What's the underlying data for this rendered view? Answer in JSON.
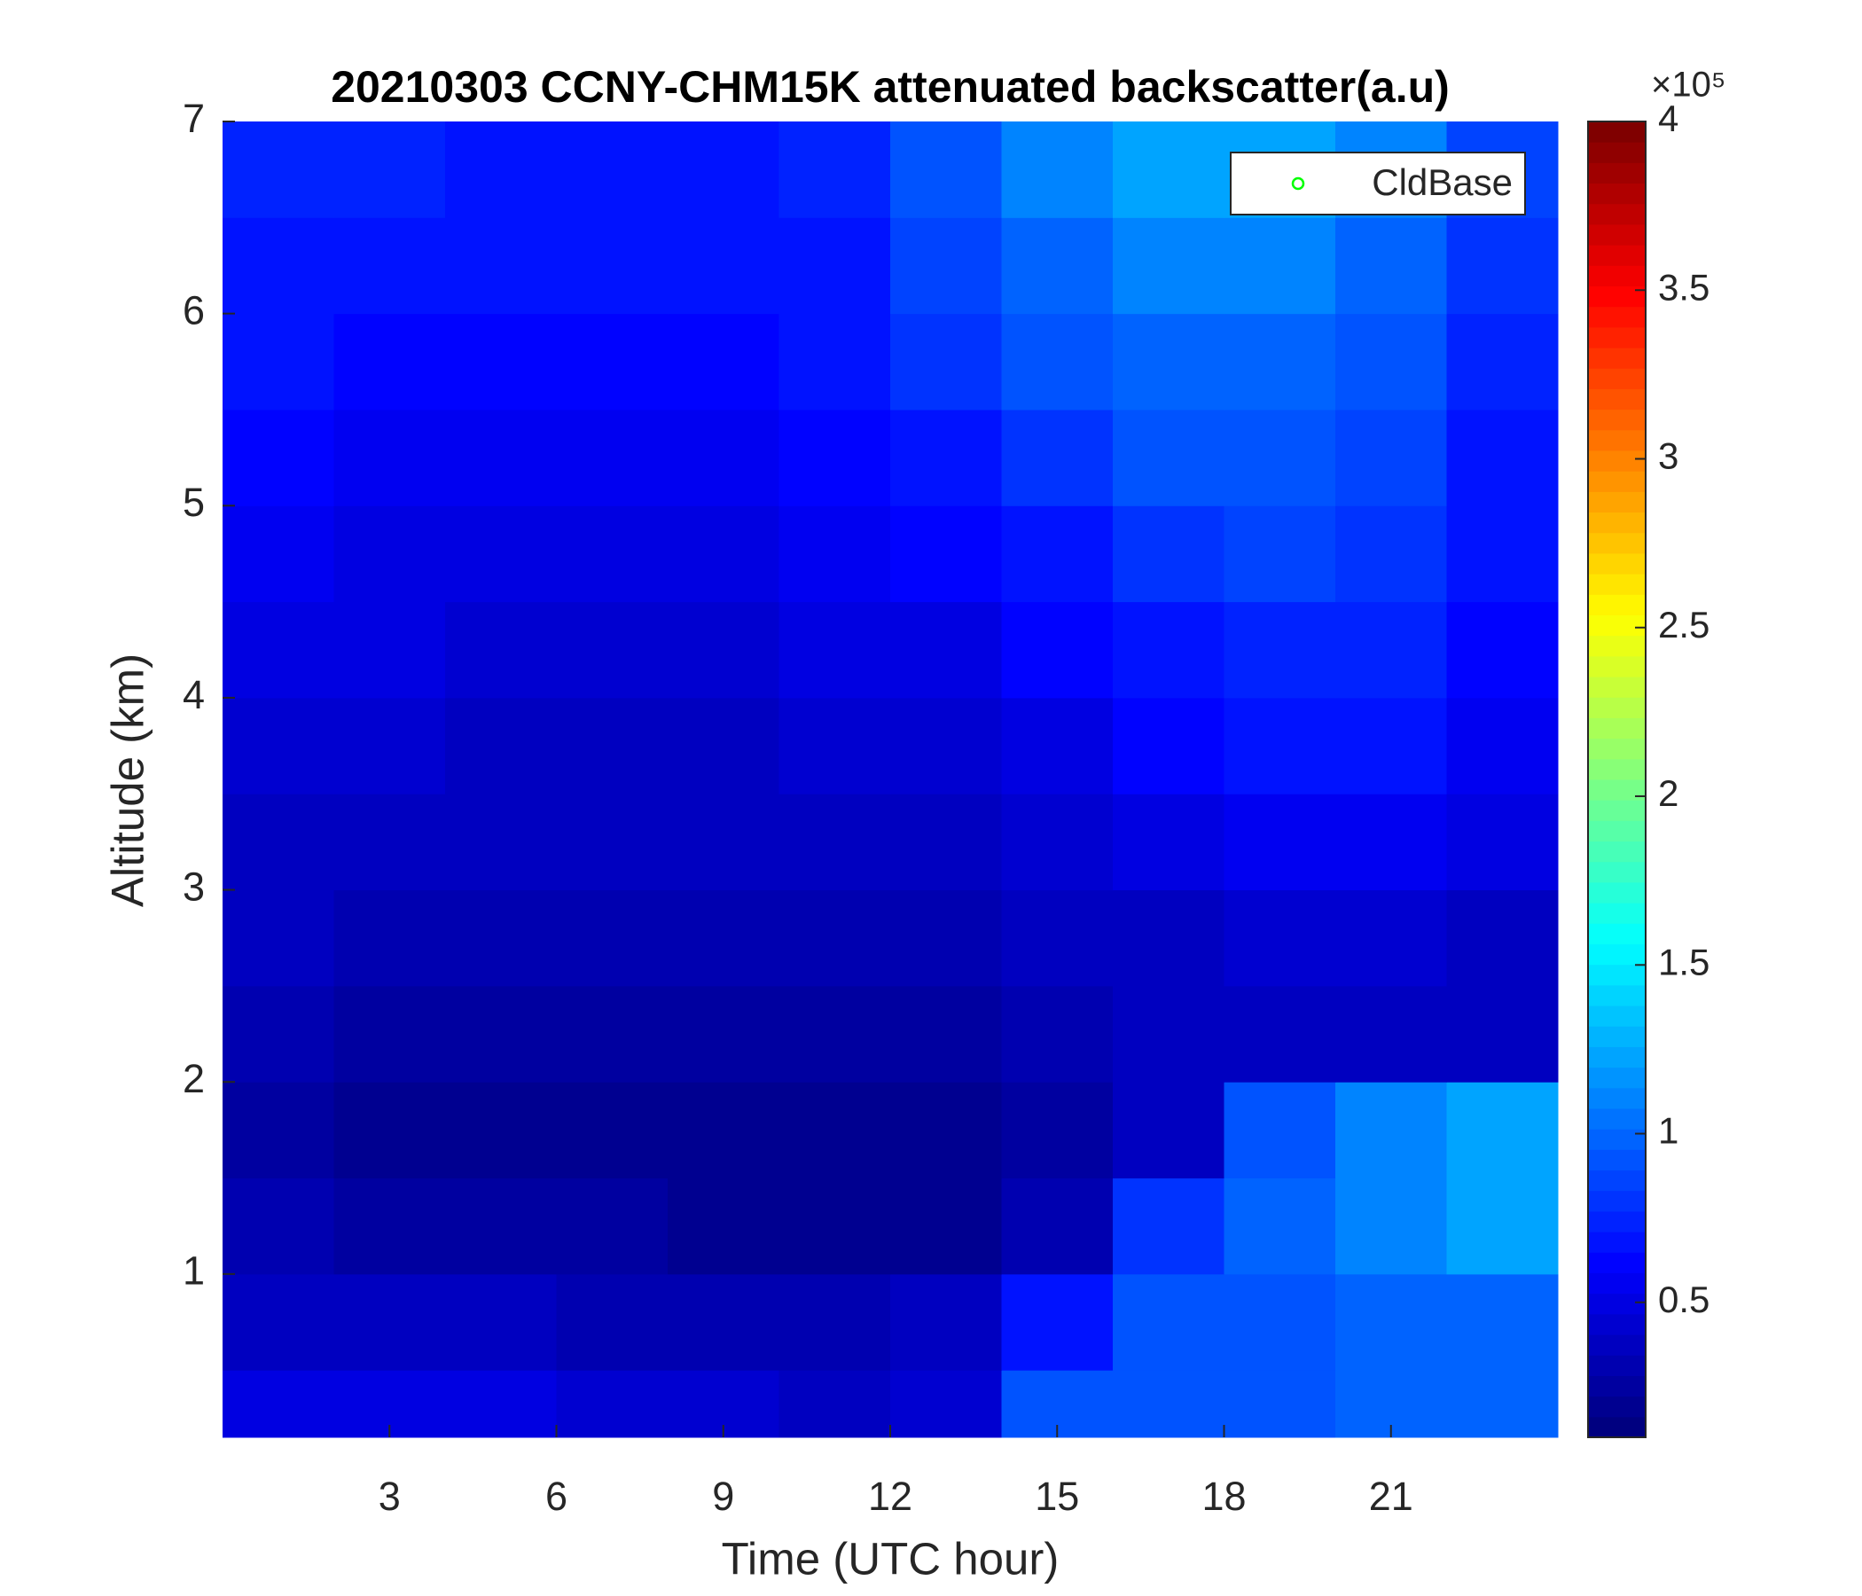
{
  "chart_data": {
    "type": "heatmap",
    "title": "20210303 CCNY-CHM15K attenuated backscatter(a.u)",
    "xlabel": "Time (UTC hour)",
    "ylabel": "Altitude (km)",
    "xlim": [
      0,
      24
    ],
    "ylim": [
      0.15,
      7
    ],
    "xticks": [
      3,
      6,
      9,
      12,
      15,
      18,
      21
    ],
    "yticks": [
      1,
      2,
      3,
      4,
      5,
      6,
      7
    ],
    "x_edges": [
      0,
      2,
      4,
      6,
      8,
      10,
      12,
      14,
      16,
      18,
      20,
      22,
      24
    ],
    "y_edges": [
      0.15,
      0.5,
      1,
      1.5,
      2,
      2.5,
      3,
      3.5,
      4,
      4.5,
      5,
      5.5,
      6,
      6.5,
      7
    ],
    "z": [
      [
        0.5,
        0.5,
        0.5,
        0.45,
        0.45,
        0.4,
        0.45,
        0.9,
        0.95,
        0.95,
        1.0,
        1.0
      ],
      [
        0.4,
        0.4,
        0.35,
        0.3,
        0.3,
        0.3,
        0.35,
        0.7,
        0.9,
        0.95,
        1.0,
        1.0
      ],
      [
        0.3,
        0.25,
        0.25,
        0.25,
        0.22,
        0.22,
        0.22,
        0.3,
        0.8,
        1.0,
        1.1,
        1.2
      ],
      [
        0.25,
        0.22,
        0.22,
        0.22,
        0.2,
        0.2,
        0.22,
        0.25,
        0.35,
        0.9,
        1.1,
        1.2
      ],
      [
        0.3,
        0.28,
        0.27,
        0.25,
        0.25,
        0.25,
        0.27,
        0.3,
        0.35,
        0.4,
        0.4,
        0.4
      ],
      [
        0.35,
        0.32,
        0.3,
        0.3,
        0.3,
        0.3,
        0.32,
        0.35,
        0.4,
        0.45,
        0.45,
        0.4
      ],
      [
        0.4,
        0.38,
        0.36,
        0.35,
        0.35,
        0.35,
        0.38,
        0.45,
        0.5,
        0.55,
        0.55,
        0.5
      ],
      [
        0.45,
        0.42,
        0.4,
        0.4,
        0.4,
        0.42,
        0.45,
        0.5,
        0.6,
        0.65,
        0.65,
        0.55
      ],
      [
        0.5,
        0.48,
        0.45,
        0.45,
        0.45,
        0.48,
        0.5,
        0.6,
        0.7,
        0.75,
        0.75,
        0.6
      ],
      [
        0.55,
        0.52,
        0.5,
        0.5,
        0.5,
        0.55,
        0.6,
        0.7,
        0.8,
        0.85,
        0.8,
        0.65
      ],
      [
        0.6,
        0.58,
        0.55,
        0.55,
        0.55,
        0.6,
        0.7,
        0.8,
        0.9,
        0.9,
        0.85,
        0.7
      ],
      [
        0.65,
        0.62,
        0.6,
        0.6,
        0.6,
        0.65,
        0.8,
        0.9,
        1.0,
        1.0,
        0.9,
        0.75
      ],
      [
        0.7,
        0.68,
        0.65,
        0.65,
        0.65,
        0.7,
        0.85,
        1.0,
        1.1,
        1.1,
        1.0,
        0.8
      ],
      [
        0.75,
        0.72,
        0.7,
        0.7,
        0.7,
        0.75,
        0.9,
        1.1,
        1.2,
        1.2,
        1.1,
        0.85
      ]
    ],
    "colormap": "jet",
    "clim": [
      0.1,
      4
    ],
    "cticks": [
      0.5,
      1,
      1.5,
      2,
      2.5,
      3,
      3.5,
      4
    ],
    "colorbar_exponent": "×10⁵",
    "series": [
      {
        "name": "CldBase",
        "color": "#00ff00",
        "values": []
      }
    ],
    "legend": "upper right"
  }
}
